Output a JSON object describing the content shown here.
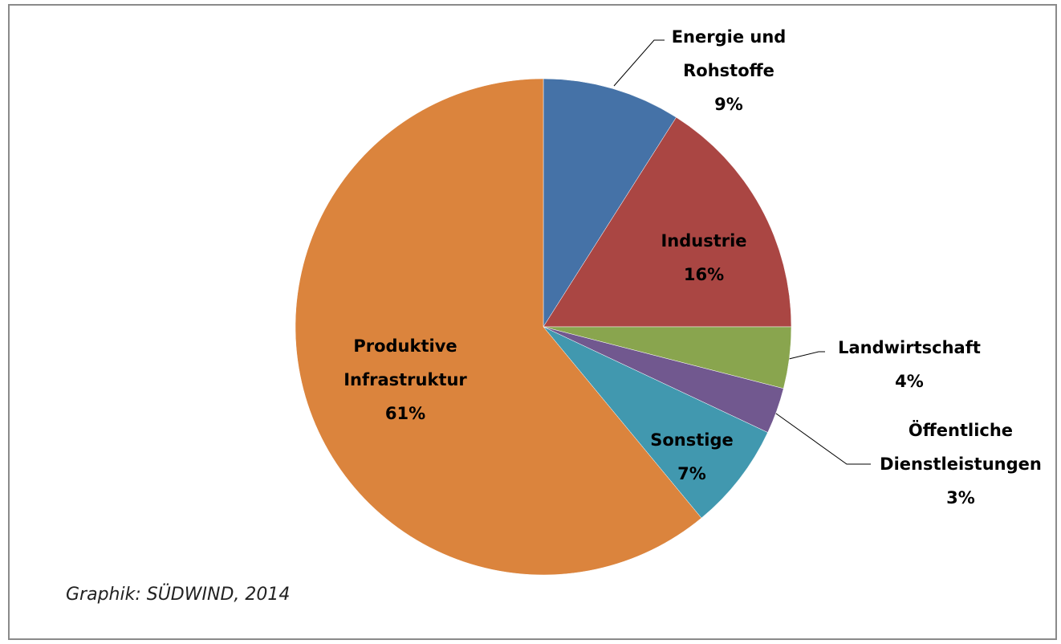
{
  "chart_data": {
    "type": "pie",
    "categories": [
      "Energie und Rohstoffe",
      "Industrie",
      "Landwirtschaft",
      "Öffentliche Dienstleistungen",
      "Sonstige",
      "Produktive Infrastruktur"
    ],
    "values": [
      9,
      16,
      4,
      3,
      7,
      61
    ],
    "value_labels": [
      "9%",
      "16%",
      "4%",
      "3%",
      "7%",
      "61%"
    ],
    "colors": [
      "#4572a7",
      "#aa4643",
      "#89a54e",
      "#71588f",
      "#4198af",
      "#db843d"
    ],
    "annotations": [
      "Graphik: SÜDWIND, 2014"
    ]
  }
}
